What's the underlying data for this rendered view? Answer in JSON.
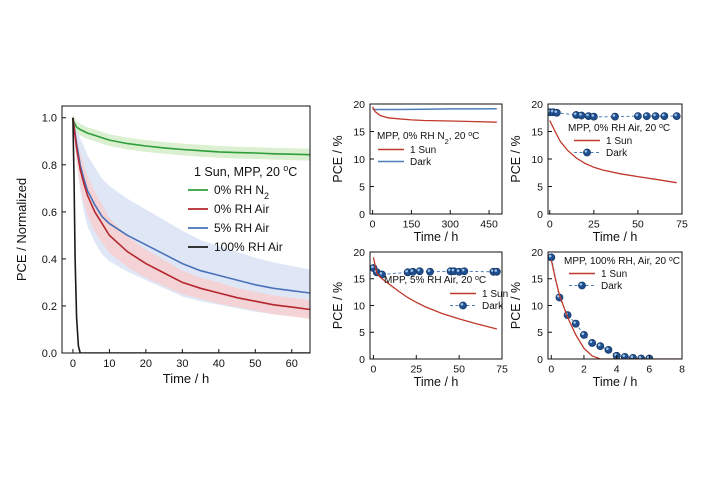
{
  "colors": {
    "n2": "#2e9e3a",
    "air0": "#b5262e",
    "air5": "#4a72b8",
    "air100": "#1a1a1a",
    "n2_band": "#d5ecc9",
    "air0_band": "#f7cfcf",
    "air5_band": "#d9e3f6",
    "sun": "#c0392b",
    "dark_line": "#4f7fb8",
    "dark_marker": "#1f4f8e",
    "dark_marker_hi": "#9cc3ea"
  },
  "chart_data": [
    {
      "id": "main",
      "type": "line",
      "title": "",
      "xlabel": "Time / h",
      "ylabel": "PCE / Normalized",
      "xlim": [
        -3,
        65
      ],
      "ylim": [
        0,
        1.05
      ],
      "xticks": [
        0,
        10,
        20,
        30,
        40,
        50,
        60
      ],
      "yticks": [
        0.0,
        0.2,
        0.4,
        0.6,
        0.8,
        1.0
      ],
      "legend_title": "1 Sun, MPP, 20 °C",
      "series": [
        {
          "name": "0% RH N2",
          "x": [
            0,
            1,
            2,
            4,
            6,
            8,
            10,
            15,
            20,
            25,
            30,
            35,
            40,
            45,
            50,
            55,
            60,
            65
          ],
          "y": [
            0.99,
            0.96,
            0.95,
            0.935,
            0.925,
            0.915,
            0.905,
            0.89,
            0.88,
            0.872,
            0.865,
            0.86,
            0.855,
            0.852,
            0.85,
            0.847,
            0.845,
            0.843
          ],
          "band": [
            0.025,
            0.025,
            0.025,
            0.025,
            0.025,
            0.025,
            0.025,
            0.025,
            0.025,
            0.025,
            0.025,
            0.025,
            0.025,
            0.025,
            0.025,
            0.025,
            0.025,
            0.025
          ]
        },
        {
          "name": "0% RH Air",
          "x": [
            0,
            1,
            2,
            3,
            4,
            6,
            8,
            10,
            15,
            20,
            25,
            30,
            35,
            40,
            45,
            50,
            55,
            60,
            65
          ],
          "y": [
            1.0,
            0.87,
            0.78,
            0.72,
            0.67,
            0.6,
            0.55,
            0.5,
            0.43,
            0.38,
            0.34,
            0.3,
            0.275,
            0.255,
            0.235,
            0.22,
            0.205,
            0.195,
            0.185
          ],
          "band": [
            0.01,
            0.05,
            0.07,
            0.08,
            0.085,
            0.085,
            0.08,
            0.075,
            0.065,
            0.06,
            0.055,
            0.05,
            0.045,
            0.045,
            0.04,
            0.04,
            0.04,
            0.04,
            0.04
          ]
        },
        {
          "name": "5% RH Air",
          "x": [
            0,
            1,
            2,
            3,
            4,
            6,
            8,
            10,
            15,
            20,
            25,
            30,
            35,
            40,
            45,
            50,
            55,
            60,
            65
          ],
          "y": [
            1.0,
            0.89,
            0.8,
            0.74,
            0.69,
            0.63,
            0.58,
            0.55,
            0.5,
            0.46,
            0.42,
            0.38,
            0.35,
            0.33,
            0.31,
            0.29,
            0.275,
            0.265,
            0.255
          ],
          "band": [
            0.01,
            0.07,
            0.11,
            0.14,
            0.15,
            0.16,
            0.16,
            0.16,
            0.155,
            0.15,
            0.145,
            0.14,
            0.13,
            0.125,
            0.12,
            0.115,
            0.11,
            0.105,
            0.1
          ]
        },
        {
          "name": "100% RH Air",
          "x": [
            0,
            0.3,
            0.6,
            1.0,
            1.5,
            2.0,
            65
          ],
          "y": [
            1.0,
            0.75,
            0.4,
            0.15,
            0.03,
            0.0,
            0.0
          ],
          "band": [
            0,
            0,
            0,
            0,
            0,
            0,
            0
          ]
        }
      ]
    },
    {
      "id": "p1",
      "type": "line",
      "title": "MPP, 0% RH N2, 20 °C",
      "xlabel": "Time / h",
      "ylabel": "PCE / %",
      "xlim": [
        -10,
        500
      ],
      "ylim": [
        0,
        20
      ],
      "xticks": [
        0,
        150,
        300,
        450
      ],
      "yticks": [
        0,
        5,
        10,
        15,
        20
      ],
      "series": [
        {
          "name": "1 Sun",
          "style": "line",
          "x": [
            0,
            10,
            30,
            60,
            100,
            150,
            200,
            300,
            400,
            480
          ],
          "y": [
            19.5,
            18.6,
            17.9,
            17.5,
            17.3,
            17.1,
            17.0,
            16.9,
            16.8,
            16.7
          ]
        },
        {
          "name": "Dark",
          "style": "line",
          "x": [
            0,
            100,
            200,
            300,
            400,
            480
          ],
          "y": [
            19.0,
            19.0,
            19.05,
            19.1,
            19.1,
            19.15
          ]
        }
      ]
    },
    {
      "id": "p2",
      "type": "line",
      "title": "MPP, 0% RH Air, 20 °C",
      "xlabel": "Time / h",
      "ylabel": "PCE / %",
      "xlim": [
        -1,
        75
      ],
      "ylim": [
        0,
        20
      ],
      "xticks": [
        0,
        25,
        50,
        75
      ],
      "yticks": [
        0,
        5,
        10,
        15,
        20
      ],
      "series": [
        {
          "name": "1 Sun",
          "style": "line",
          "x": [
            0,
            3,
            6,
            10,
            15,
            20,
            25,
            30,
            40,
            50,
            60,
            72
          ],
          "y": [
            17.0,
            15.0,
            13.2,
            11.6,
            10.2,
            9.2,
            8.5,
            8.0,
            7.3,
            6.8,
            6.3,
            5.7
          ]
        },
        {
          "name": "Dark",
          "style": "markers",
          "x": [
            0,
            2,
            4,
            15,
            18,
            22,
            25,
            37,
            50,
            55,
            60,
            65,
            72
          ],
          "y": [
            18.5,
            18.5,
            18.4,
            18.0,
            17.9,
            17.8,
            17.7,
            17.7,
            17.8,
            17.8,
            17.8,
            17.8,
            17.8
          ]
        }
      ]
    },
    {
      "id": "p3",
      "type": "line",
      "title": "MPP, 5% RH Air, 20 °C",
      "xlabel": "Time / h",
      "ylabel": "PCE / %",
      "xlim": [
        -2,
        75
      ],
      "ylim": [
        0,
        20
      ],
      "xticks": [
        0,
        25,
        50,
        75
      ],
      "yticks": [
        0,
        5,
        10,
        15,
        20
      ],
      "series": [
        {
          "name": "1 Sun",
          "style": "line",
          "x": [
            0,
            2,
            5,
            10,
            15,
            20,
            25,
            30,
            40,
            50,
            60,
            72
          ],
          "y": [
            19.0,
            16.0,
            15.0,
            13.8,
            12.6,
            11.5,
            10.6,
            9.8,
            8.5,
            7.5,
            6.6,
            5.6
          ]
        },
        {
          "name": "Dark",
          "style": "markers",
          "x": [
            0,
            2,
            5,
            20,
            23,
            27,
            33,
            45,
            47,
            50,
            53,
            70,
            72
          ],
          "y": [
            17.0,
            16.2,
            15.8,
            16.2,
            16.3,
            16.4,
            16.3,
            16.4,
            16.4,
            16.3,
            16.4,
            16.3,
            16.3
          ]
        }
      ]
    },
    {
      "id": "p4",
      "type": "line",
      "title": "MPP, 100% RH, Air, 20 °C",
      "xlabel": "Time / h",
      "ylabel": "PCE / %",
      "xlim": [
        -0.2,
        8
      ],
      "ylim": [
        0,
        20
      ],
      "xticks": [
        0,
        2,
        4,
        6,
        8
      ],
      "yticks": [
        0,
        5,
        10,
        15,
        20
      ],
      "series": [
        {
          "name": "1 Sun",
          "style": "line",
          "x": [
            0,
            0.25,
            0.5,
            1.0,
            1.5,
            2.0,
            2.5,
            3.0,
            8.0
          ],
          "y": [
            18.5,
            15.0,
            12.0,
            7.8,
            4.5,
            2.0,
            0.6,
            0.0,
            0.0
          ]
        },
        {
          "name": "Dark",
          "style": "markers",
          "x": [
            0,
            0.5,
            1.0,
            1.5,
            2.0,
            2.5,
            3.0,
            3.5,
            4.0,
            4.5,
            5.0,
            5.5,
            6.0
          ],
          "y": [
            19.0,
            11.5,
            8.2,
            6.6,
            4.5,
            3.0,
            2.4,
            1.7,
            0.6,
            0.4,
            0.2,
            0.1,
            0.1
          ]
        }
      ]
    }
  ]
}
